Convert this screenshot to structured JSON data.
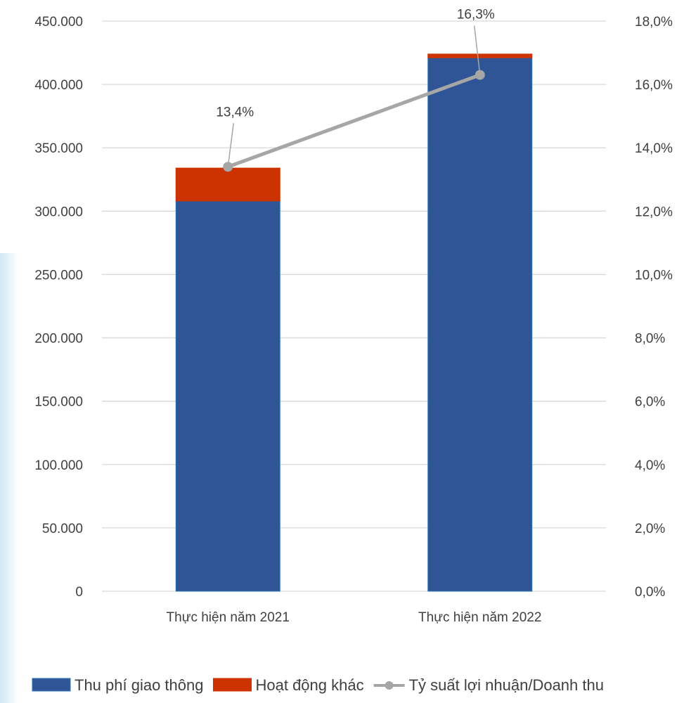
{
  "chart_data": {
    "type": "bar",
    "stacked": true,
    "categories": [
      "Thực hiện năm 2021",
      "Thực hiện năm 2022"
    ],
    "series": [
      {
        "name": "Thu phí giao thông",
        "type": "bar",
        "axis": "left",
        "values": [
          308000,
          421000
        ],
        "color": "#2F5597"
      },
      {
        "name": "Hoạt động khác",
        "type": "bar",
        "axis": "left",
        "values": [
          26000,
          3000
        ],
        "color": "#CC3300"
      },
      {
        "name": "Tỷ suất lợi nhuận/Doanh thu",
        "type": "line",
        "axis": "right",
        "values": [
          13.4,
          16.3
        ],
        "labels": [
          "13,4%",
          "16,3%"
        ],
        "color": "#A6A6A6"
      }
    ],
    "y_left": {
      "min": 0,
      "max": 450000,
      "step": 50000,
      "tick_labels": [
        "0",
        "50.000",
        "100.000",
        "150.000",
        "200.000",
        "250.000",
        "300.000",
        "350.000",
        "400.000",
        "450.000"
      ]
    },
    "y_right": {
      "min": 0,
      "max": 18,
      "step": 2,
      "tick_labels": [
        "0,0%",
        "2,0%",
        "4,0%",
        "6,0%",
        "8,0%",
        "10,0%",
        "12,0%",
        "14,0%",
        "16,0%",
        "18,0%"
      ]
    },
    "grid": true,
    "legend_position": "bottom"
  }
}
